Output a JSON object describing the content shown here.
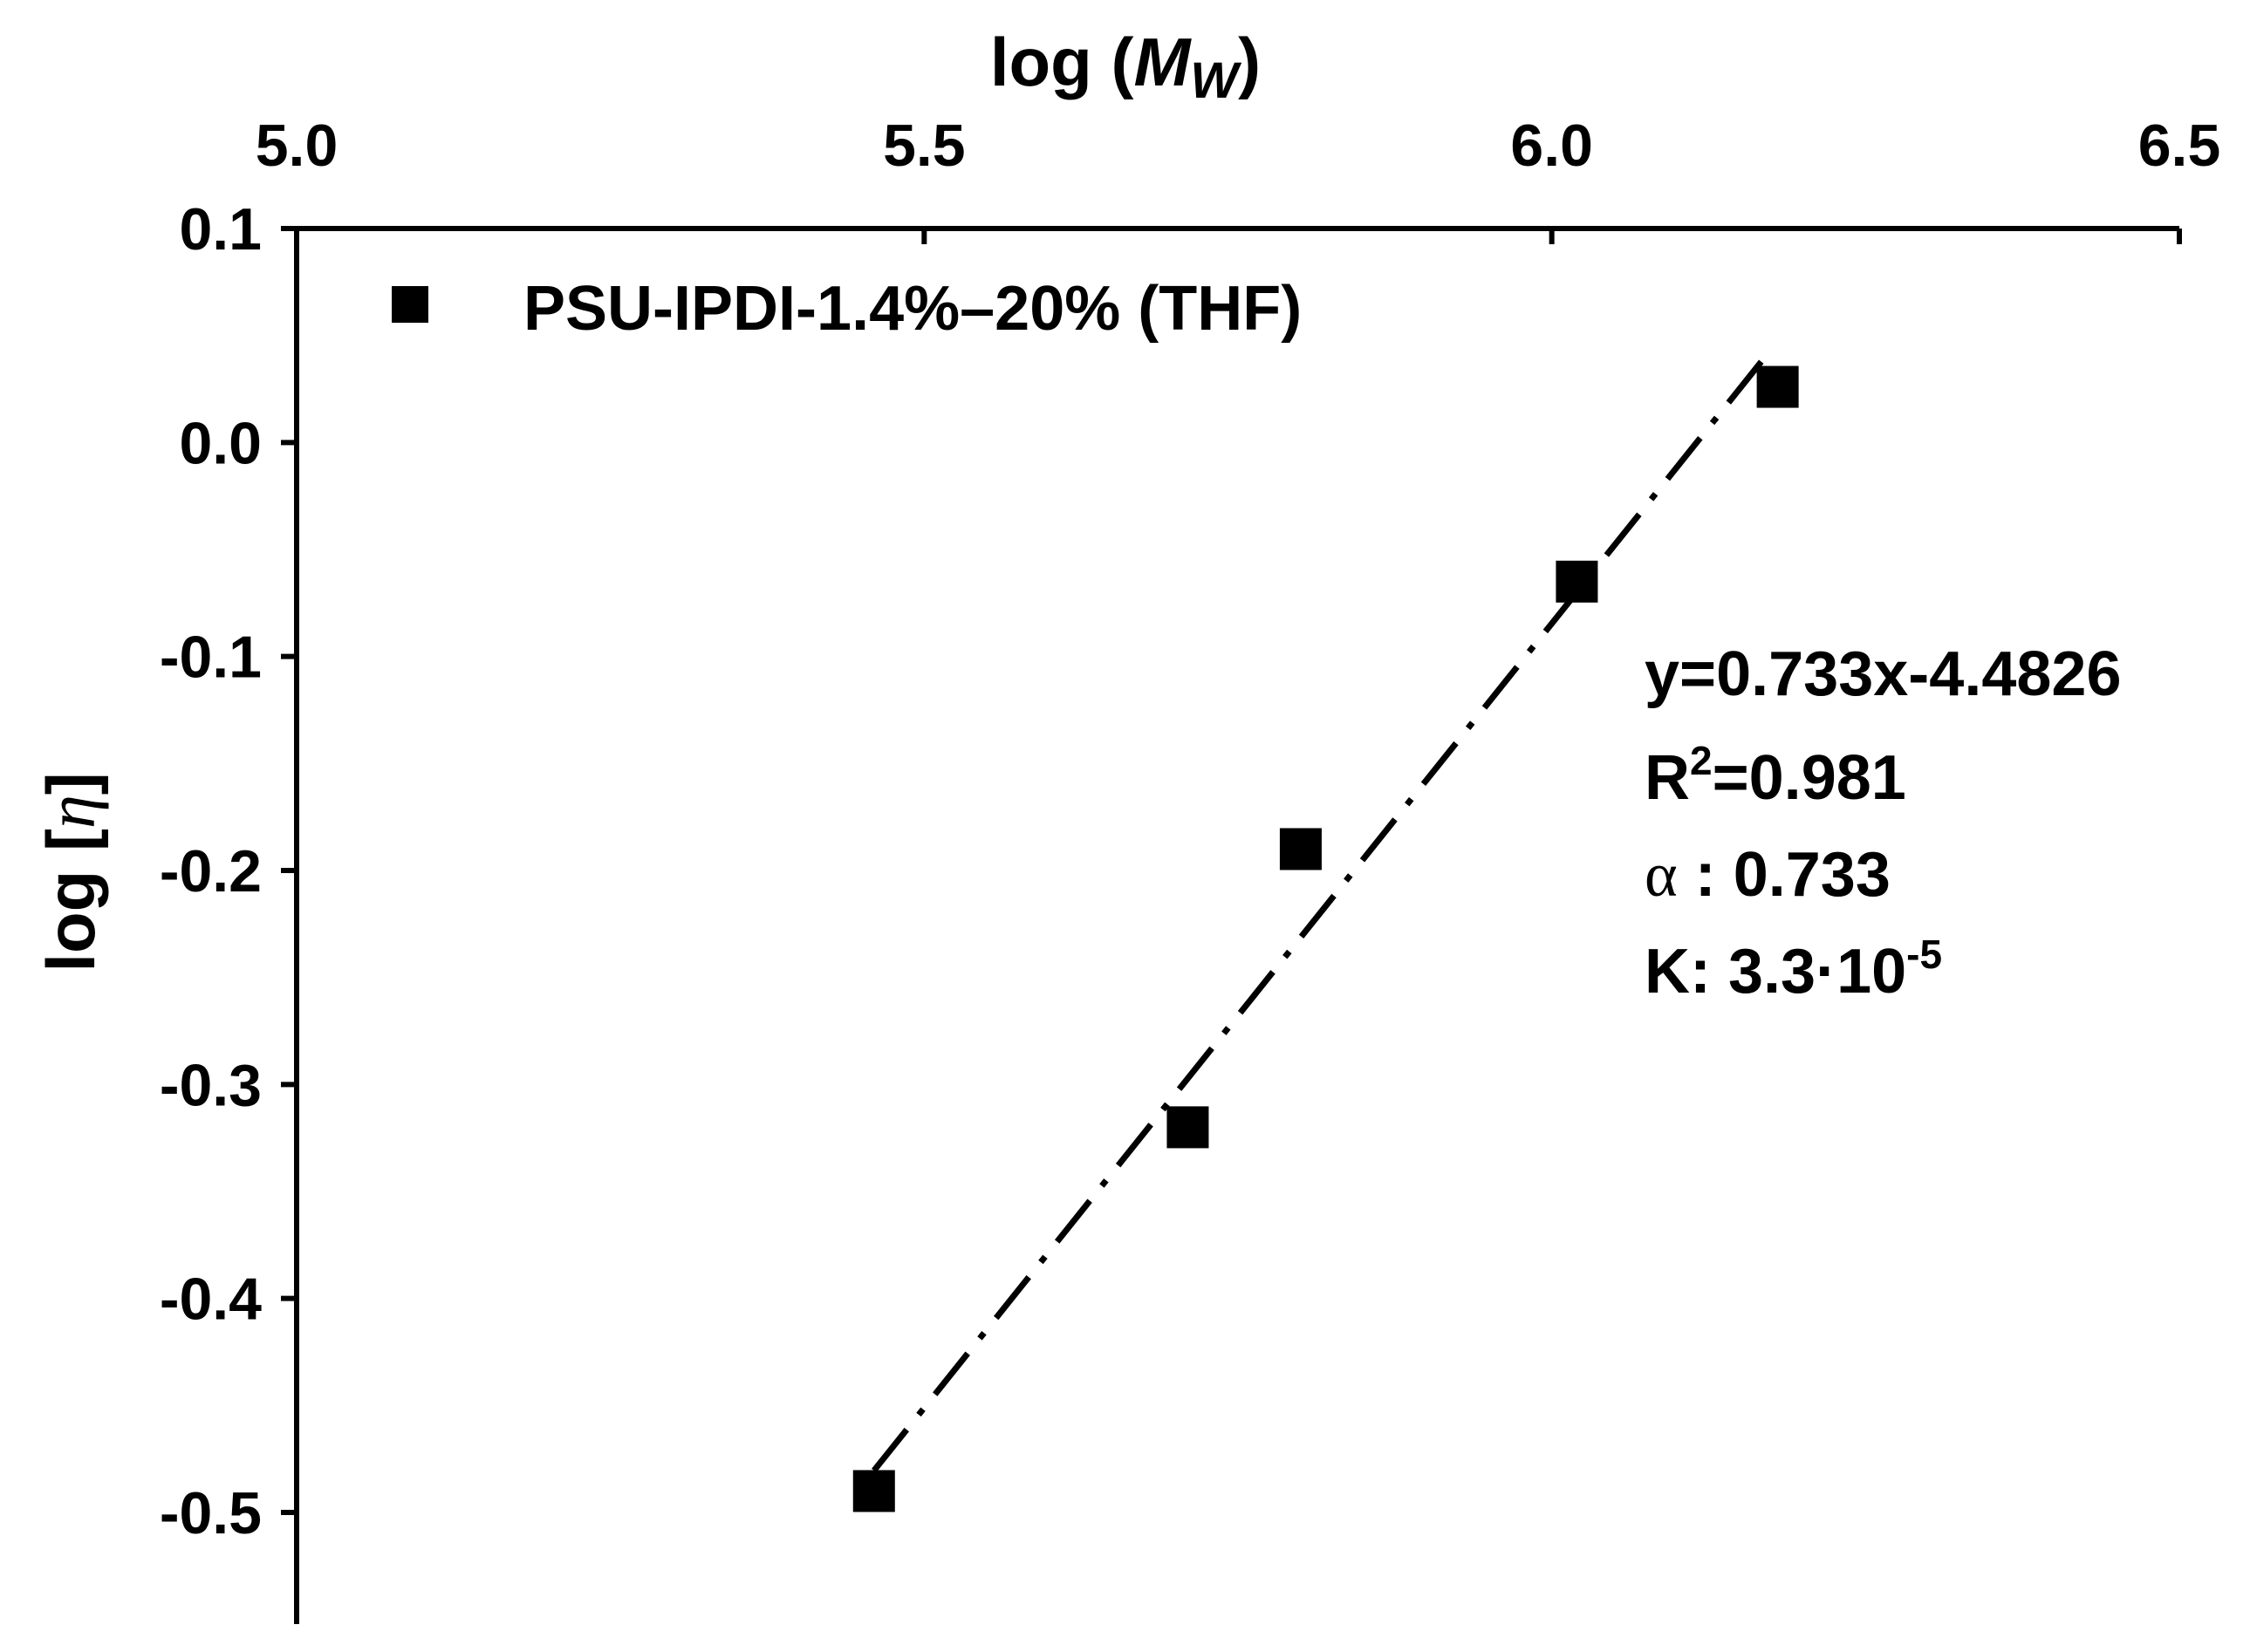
{
  "chart_data": {
    "type": "scatter",
    "title": "",
    "xlabel_prefix": "log (",
    "xlabel_symbol": "M",
    "xlabel_subscript": "W",
    "xlabel_suffix": ")",
    "ylabel_prefix": "log [",
    "ylabel_symbol": "η",
    "ylabel_suffix": "]",
    "xaxis_position": "top",
    "xlim": [
      5.0,
      6.5
    ],
    "ylim": [
      -0.55,
      0.1
    ],
    "xticks": [
      5.0,
      5.5,
      6.0,
      6.5
    ],
    "xtick_labels": [
      "5.0",
      "5.5",
      "6.0",
      "6.5"
    ],
    "yticks": [
      0.1,
      0.0,
      -0.1,
      -0.2,
      -0.3,
      -0.4,
      -0.5
    ],
    "ytick_labels": [
      "0.1",
      "0.0",
      "-0.1",
      "-0.2",
      "-0.3",
      "-0.4",
      "-0.5"
    ],
    "grid": false,
    "series": [
      {
        "name": "PSU-IPDI-1.4%–20% (THF)",
        "marker": "square",
        "color": "#000000",
        "x": [
          5.46,
          5.71,
          5.8,
          6.02,
          6.18
        ],
        "y": [
          -0.49,
          -0.32,
          -0.19,
          -0.065,
          0.026
        ]
      }
    ],
    "fit": {
      "slope": 0.733,
      "intercept": -4.4826,
      "x_range": [
        5.46,
        6.17
      ],
      "line_style": "dash-dot",
      "color": "#000000"
    },
    "legend": {
      "position": "top-left",
      "label": "PSU-IPDI-1.4%–20% (THF)"
    },
    "annotations": {
      "equation": "y=0.733x-4.4826",
      "r2_prefix": "R",
      "r2_sup": "2",
      "r2_value": "=0.981",
      "alpha_symbol": "α",
      "alpha_value": " : 0.733",
      "k_prefix": "K: 3.3",
      "k_dot": "·",
      "k_base": "10",
      "k_exp": "-5"
    }
  }
}
